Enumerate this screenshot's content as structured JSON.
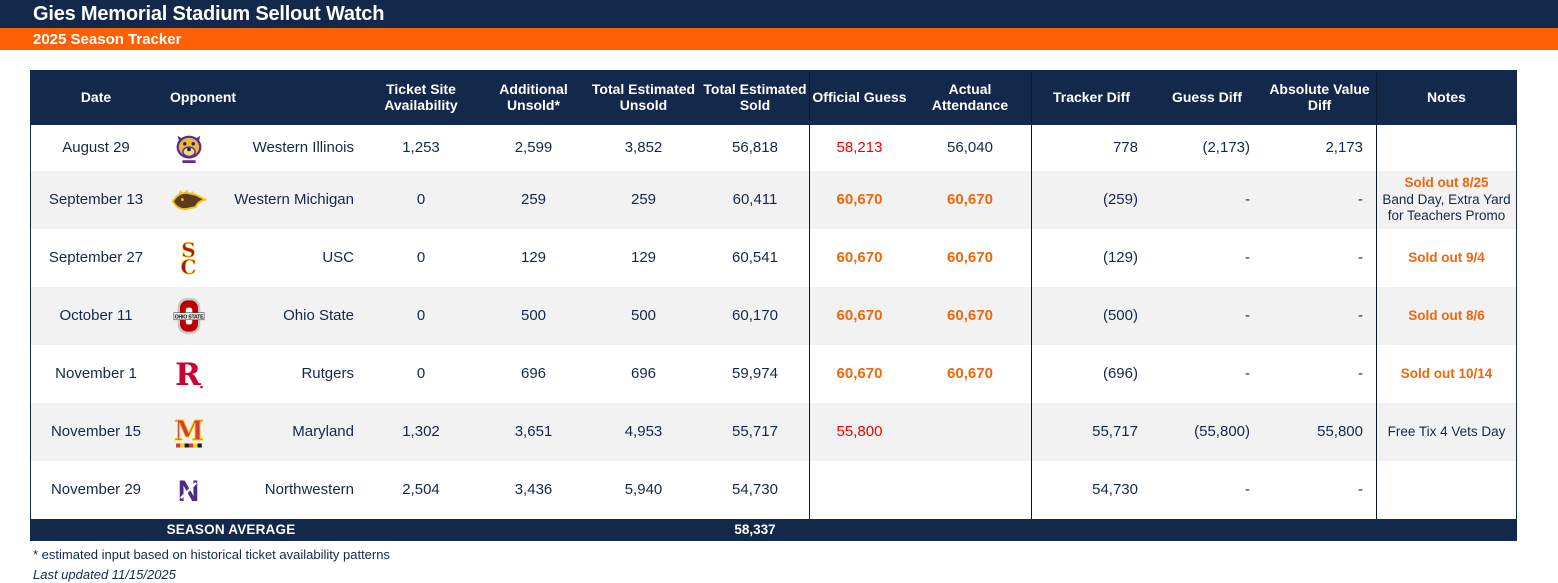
{
  "page": {
    "title": "Gies Memorial Stadium Sellout Watch",
    "subtitle": "2025 Season Tracker"
  },
  "colors": {
    "navy": "#13294B",
    "orange_bar": "#FF5F05",
    "official_guess_red": "#F40000",
    "sellout_orange": "#F0660A",
    "alt_row_gray": "#F2F2F2"
  },
  "table": {
    "headers": {
      "date": "Date",
      "opponent": "Opponent",
      "availability": "Ticket Site Availability",
      "additional_unsold": "Additional Unsold*",
      "total_unsold": "Total Estimated Unsold",
      "total_sold": "Total Estimated Sold",
      "official_guess": "Official Guess",
      "actual": "Actual Attendance",
      "tracker_diff": "Tracker Diff",
      "guess_diff": "Guess Diff",
      "abs_diff": "Absolute Value Diff",
      "notes": "Notes"
    },
    "rows": [
      {
        "date": "August 29",
        "opponent": "Western Illinois",
        "logo": "western-illinois-logo",
        "availability": "1,253",
        "additional_unsold": "2,599",
        "total_unsold": "3,852",
        "total_sold": "56,818",
        "official_guess": "58,213",
        "official_style": "red",
        "actual": "56,040",
        "actual_style": "",
        "tracker_diff": "778",
        "guess_diff": "(2,173)",
        "abs_diff": "2,173",
        "note_title": "",
        "note_body": ""
      },
      {
        "date": "September 13",
        "opponent": "Western Michigan",
        "logo": "western-michigan-logo",
        "availability": "0",
        "additional_unsold": "259",
        "total_unsold": "259",
        "total_sold": "60,411",
        "official_guess": "60,670",
        "official_style": "sellout",
        "actual": "60,670",
        "actual_style": "sellout",
        "tracker_diff": "(259)",
        "guess_diff": "-",
        "abs_diff": "-",
        "note_title": "Sold out 8/25",
        "note_body": "Band Day, Extra Yard for Teachers Promo"
      },
      {
        "date": "September 27",
        "opponent": "USC",
        "logo": "usc-logo",
        "availability": "0",
        "additional_unsold": "129",
        "total_unsold": "129",
        "total_sold": "60,541",
        "official_guess": "60,670",
        "official_style": "sellout",
        "actual": "60,670",
        "actual_style": "sellout",
        "tracker_diff": "(129)",
        "guess_diff": "-",
        "abs_diff": "-",
        "note_title": "Sold out 9/4",
        "note_body": ""
      },
      {
        "date": "October 11",
        "opponent": "Ohio State",
        "logo": "ohio-state-logo",
        "availability": "0",
        "additional_unsold": "500",
        "total_unsold": "500",
        "total_sold": "60,170",
        "official_guess": "60,670",
        "official_style": "sellout",
        "actual": "60,670",
        "actual_style": "sellout",
        "tracker_diff": "(500)",
        "guess_diff": "-",
        "abs_diff": "-",
        "note_title": "Sold out 8/6",
        "note_body": ""
      },
      {
        "date": "November 1",
        "opponent": "Rutgers",
        "logo": "rutgers-logo",
        "availability": "0",
        "additional_unsold": "696",
        "total_unsold": "696",
        "total_sold": "59,974",
        "official_guess": "60,670",
        "official_style": "sellout",
        "actual": "60,670",
        "actual_style": "sellout",
        "tracker_diff": "(696)",
        "guess_diff": "-",
        "abs_diff": "-",
        "note_title": "Sold out 10/14",
        "note_body": ""
      },
      {
        "date": "November 15",
        "opponent": "Maryland",
        "logo": "maryland-logo",
        "availability": "1,302",
        "additional_unsold": "3,651",
        "total_unsold": "4,953",
        "total_sold": "55,717",
        "official_guess": "55,800",
        "official_style": "red",
        "actual": "",
        "actual_style": "",
        "tracker_diff": "55,717",
        "guess_diff": "(55,800)",
        "abs_diff": "55,800",
        "note_title": "",
        "note_body": "Free Tix 4 Vets Day"
      },
      {
        "date": "November 29",
        "opponent": "Northwestern",
        "logo": "northwestern-logo",
        "availability": "2,504",
        "additional_unsold": "3,436",
        "total_unsold": "5,940",
        "total_sold": "54,730",
        "official_guess": "",
        "official_style": "",
        "actual": "",
        "actual_style": "",
        "tracker_diff": "54,730",
        "guess_diff": "-",
        "abs_diff": "-",
        "note_title": "",
        "note_body": ""
      }
    ],
    "summary": {
      "label": "SEASON AVERAGE",
      "total_sold_avg": "58,337"
    }
  },
  "footnotes": {
    "asterisk": "* estimated input based on historical ticket availability patterns",
    "updated": "Last updated 11/15/2025"
  }
}
